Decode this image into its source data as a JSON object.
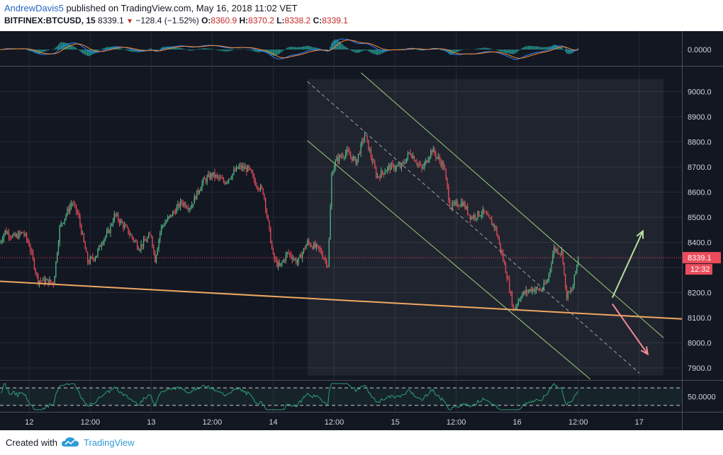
{
  "header": {
    "author": "AndrewDavis5",
    "published": "published on TradingView.com, May 16, 2018 11:02 VET",
    "symbol": "BITFINEX:BTCUSD, 15",
    "last": "8339.1",
    "change": "−128.4 (−1.52%)",
    "open_label": "O:",
    "open": "8360.9",
    "high_label": "H:",
    "high": "8370.2",
    "low_label": "L:",
    "low": "8338.2",
    "close_label": "C:",
    "close": "8339.1"
  },
  "footer": {
    "created_with": "Created with",
    "brand": "TradingView"
  },
  "colors": {
    "background": "#131722",
    "grid": "#262a35",
    "up": "#53b987",
    "down": "#eb4d5c",
    "trendline": "#f0a860",
    "channel": "#9ccf7a",
    "arrow_up": "#b8dfa0",
    "arrow_down": "#f28b92",
    "macd_line": "#2a85ff",
    "macd_signal": "#ff8a30",
    "macd_hist": "#26a69a",
    "rsi": "#2d9e73",
    "price_tag": "#eb4d5c"
  },
  "chart_data": {
    "type": "candlestick",
    "symbol": "BITFINEX:BTCUSD",
    "interval": "15",
    "price_axis": {
      "ticks": [
        7900,
        8000,
        8100,
        8200,
        8300,
        8400,
        8500,
        8600,
        8700,
        8800,
        8900,
        9000
      ],
      "labels": [
        "7900.0",
        "8000.0",
        "8100.0",
        "8200.0",
        "8300.0",
        "8400.0",
        "8500.0",
        "8600.0",
        "8700.0",
        "8800.0",
        "8900.0",
        "9000.0"
      ],
      "range": [
        7855,
        9100
      ]
    },
    "time_axis": {
      "ticks": [
        {
          "t": 0,
          "label": "12"
        },
        {
          "t": 0.5,
          "label": "12:00"
        },
        {
          "t": 1,
          "label": "13"
        },
        {
          "t": 1.5,
          "label": "12:00"
        },
        {
          "t": 2,
          "label": "14"
        },
        {
          "t": 2.5,
          "label": "12:00"
        },
        {
          "t": 3,
          "label": "15"
        },
        {
          "t": 3.5,
          "label": "12:00"
        },
        {
          "t": 4,
          "label": "16"
        },
        {
          "t": 4.5,
          "label": "12:00"
        },
        {
          "t": 5,
          "label": "17"
        }
      ],
      "range": [
        -0.24,
        5.35
      ]
    },
    "price_path": [
      [
        -0.24,
        8400
      ],
      [
        -0.2,
        8445
      ],
      [
        -0.12,
        8420
      ],
      [
        -0.05,
        8440
      ],
      [
        0.0,
        8390
      ],
      [
        0.07,
        8250
      ],
      [
        0.2,
        8240
      ],
      [
        0.25,
        8460
      ],
      [
        0.35,
        8560
      ],
      [
        0.4,
        8510
      ],
      [
        0.48,
        8320
      ],
      [
        0.55,
        8350
      ],
      [
        0.6,
        8410
      ],
      [
        0.65,
        8440
      ],
      [
        0.7,
        8510
      ],
      [
        0.8,
        8450
      ],
      [
        0.9,
        8380
      ],
      [
        1.0,
        8430
      ],
      [
        1.03,
        8330
      ],
      [
        1.08,
        8460
      ],
      [
        1.15,
        8500
      ],
      [
        1.25,
        8560
      ],
      [
        1.32,
        8540
      ],
      [
        1.42,
        8640
      ],
      [
        1.5,
        8670
      ],
      [
        1.6,
        8640
      ],
      [
        1.72,
        8700
      ],
      [
        1.8,
        8690
      ],
      [
        1.85,
        8640
      ],
      [
        1.92,
        8600
      ],
      [
        2.0,
        8340
      ],
      [
        2.05,
        8300
      ],
      [
        2.12,
        8360
      ],
      [
        2.2,
        8320
      ],
      [
        2.28,
        8400
      ],
      [
        2.38,
        8370
      ],
      [
        2.45,
        8310
      ],
      [
        2.48,
        8680
      ],
      [
        2.52,
        8730
      ],
      [
        2.6,
        8760
      ],
      [
        2.68,
        8720
      ],
      [
        2.75,
        8830
      ],
      [
        2.85,
        8660
      ],
      [
        2.95,
        8700
      ],
      [
        3.05,
        8700
      ],
      [
        3.12,
        8760
      ],
      [
        3.22,
        8690
      ],
      [
        3.3,
        8770
      ],
      [
        3.4,
        8700
      ],
      [
        3.45,
        8540
      ],
      [
        3.55,
        8560
      ],
      [
        3.62,
        8500
      ],
      [
        3.72,
        8520
      ],
      [
        3.82,
        8460
      ],
      [
        3.92,
        8260
      ],
      [
        3.97,
        8130
      ],
      [
        4.03,
        8190
      ],
      [
        4.12,
        8215
      ],
      [
        4.2,
        8210
      ],
      [
        4.25,
        8250
      ],
      [
        4.3,
        8375
      ],
      [
        4.37,
        8360
      ],
      [
        4.4,
        8185
      ],
      [
        4.45,
        8210
      ],
      [
        4.5,
        8339.1
      ]
    ],
    "trendline": {
      "from": {
        "t": -0.24,
        "p": 8245
      },
      "to": {
        "t": 5.35,
        "p": 8095
      }
    },
    "channel_upper": {
      "from": {
        "t": 2.72,
        "p": 9075
      },
      "to": {
        "t": 5.2,
        "p": 8020
      }
    },
    "channel_mid": {
      "from": {
        "t": 2.28,
        "p": 9040
      },
      "to": {
        "t": 5.0,
        "p": 7880
      }
    },
    "channel_lower": {
      "from": {
        "t": 2.28,
        "p": 8805
      },
      "to": {
        "t": 4.6,
        "p": 7855
      }
    },
    "channel_box": {
      "t0": 2.28,
      "t1": 5.2,
      "p0": 7870,
      "p1": 9050
    },
    "scenario_arrows": [
      {
        "name": "bullish",
        "from": {
          "t": 4.78,
          "p": 8180
        },
        "to": {
          "t": 5.03,
          "p": 8445
        }
      },
      {
        "name": "bearish",
        "from": {
          "t": 4.78,
          "p": 8155
        },
        "to": {
          "t": 5.07,
          "p": 7955
        }
      }
    ],
    "last_price": {
      "value": 8339.1,
      "label": "8339.1",
      "countdown": "12:32"
    },
    "macd": {
      "zero_label": "0.0000"
    },
    "rsi": {
      "label": "50.0000",
      "bands": [
        70,
        30
      ]
    }
  }
}
